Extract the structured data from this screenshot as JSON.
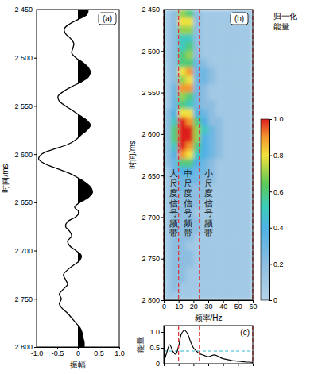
{
  "chart_data": [
    {
      "type": "line",
      "label": "(a)",
      "xlabel": "振幅",
      "ylabel": "时间/ms",
      "xlim": [
        -1,
        1
      ],
      "ylim": [
        2800,
        2450
      ],
      "xticks": [
        {
          "value": -1,
          "label": "-1.0"
        },
        -0.5,
        0,
        0.5,
        {
          "value": 1,
          "label": "1.0"
        }
      ],
      "yticks": [
        {
          "value": 2450,
          "label": "2 450"
        },
        {
          "value": 2500,
          "label": "2 500"
        },
        {
          "value": 2550,
          "label": "2 550"
        },
        {
          "value": 2600,
          "label": "2 600"
        },
        {
          "value": 2650,
          "label": "2 650"
        },
        {
          "value": 2700,
          "label": "2 700"
        },
        {
          "value": 2750,
          "label": "2 750"
        },
        {
          "value": 2800,
          "label": "2 800"
        }
      ],
      "color": "#000000",
      "x": [
        0.25,
        0.22,
        0.02,
        -0.2,
        -0.33,
        -0.3,
        -0.18,
        -0.1,
        -0.12,
        -0.15,
        -0.05,
        0.12,
        0.25,
        0.3,
        0.25,
        0.08,
        -0.15,
        -0.35,
        -0.48,
        -0.45,
        -0.3,
        -0.12,
        0.05,
        0.22,
        0.3,
        0.22,
        0.08,
        -0.05,
        -0.25,
        -0.6,
        -0.88,
        -0.95,
        -0.8,
        -0.5,
        -0.2,
        0.02,
        0.2,
        0.32,
        0.35,
        0.25,
        0.05,
        -0.08,
        0.03,
        -0.05,
        -0.25,
        -0.3,
        -0.2,
        -0.15,
        -0.25,
        -0.2,
        -0.05,
        0.08,
        0.05,
        -0.1,
        -0.25,
        -0.35,
        -0.3,
        -0.25,
        -0.35,
        -0.45,
        -0.4,
        -0.45,
        -0.38,
        -0.25,
        -0.15,
        -0.05,
        0.05,
        0.1,
        0.12,
        0.15,
        0.15
      ],
      "y": [
        2450,
        2455,
        2460,
        2465,
        2470,
        2475,
        2480,
        2485,
        2490,
        2495,
        2500,
        2505,
        2510,
        2515,
        2520,
        2525,
        2530,
        2535,
        2540,
        2545,
        2550,
        2555,
        2560,
        2565,
        2570,
        2575,
        2580,
        2585,
        2590,
        2595,
        2600,
        2605,
        2610,
        2615,
        2620,
        2625,
        2630,
        2635,
        2640,
        2645,
        2650,
        2655,
        2660,
        2665,
        2670,
        2675,
        2680,
        2685,
        2690,
        2695,
        2700,
        2705,
        2710,
        2715,
        2720,
        2725,
        2730,
        2735,
        2740,
        2745,
        2750,
        2755,
        2760,
        2765,
        2770,
        2775,
        2780,
        2785,
        2790,
        2795,
        2800
      ]
    },
    {
      "type": "heatmap",
      "label": "(b)",
      "xlabel": "频率/Hz",
      "ylabel": "时间/ms",
      "xlim": [
        0,
        60
      ],
      "ylim": [
        2800,
        2450
      ],
      "xticks": [
        0,
        10,
        20,
        30,
        40,
        50,
        60
      ],
      "yticks": [
        {
          "value": 2450,
          "label": "2 450"
        },
        {
          "value": 2500,
          "label": "2 500"
        },
        {
          "value": 2550,
          "label": "2 550"
        },
        {
          "value": 2600,
          "label": "2 600"
        },
        {
          "value": 2650,
          "label": "2 650"
        },
        {
          "value": 2700,
          "label": "2 700"
        },
        {
          "value": 2750,
          "label": "2 750"
        },
        {
          "value": 2800,
          "label": "2 800"
        }
      ],
      "x_bins": [
        0,
        5,
        10,
        15,
        20,
        25,
        30,
        35,
        40,
        45,
        50,
        55,
        60
      ],
      "y_bins": [
        2450,
        2460,
        2470,
        2480,
        2490,
        2500,
        2510,
        2520,
        2530,
        2540,
        2550,
        2560,
        2570,
        2580,
        2590,
        2600,
        2610,
        2620,
        2630,
        2640,
        2650,
        2660,
        2670,
        2680,
        2690,
        2700,
        2710,
        2720,
        2730,
        2740,
        2750,
        2760,
        2770,
        2780,
        2790,
        2800
      ],
      "z": [
        [
          0.1,
          0.2,
          0.7,
          0.6,
          0.2,
          0.1,
          0.1,
          0.1,
          0.1,
          0.1,
          0.1,
          0.1
        ],
        [
          0.1,
          0.2,
          0.8,
          0.8,
          0.2,
          0.1,
          0.1,
          0.1,
          0.1,
          0.1,
          0.1,
          0.1
        ],
        [
          0.1,
          0.2,
          0.7,
          0.7,
          0.2,
          0.1,
          0.1,
          0.1,
          0.1,
          0.1,
          0.1,
          0.1
        ],
        [
          0.1,
          0.2,
          0.5,
          0.5,
          0.2,
          0.1,
          0.1,
          0.1,
          0.1,
          0.1,
          0.1,
          0.1
        ],
        [
          0.1,
          0.2,
          0.5,
          0.6,
          0.2,
          0.1,
          0.1,
          0.1,
          0.1,
          0.1,
          0.1,
          0.1
        ],
        [
          0.1,
          0.2,
          0.6,
          0.7,
          0.2,
          0.1,
          0.1,
          0.1,
          0.1,
          0.1,
          0.1,
          0.1
        ],
        [
          0.1,
          0.2,
          0.6,
          0.6,
          0.3,
          0.2,
          0.1,
          0.1,
          0.1,
          0.1,
          0.1,
          0.1
        ],
        [
          0.1,
          0.2,
          0.8,
          0.9,
          0.3,
          0.3,
          0.2,
          0.1,
          0.1,
          0.1,
          0.1,
          0.1
        ],
        [
          0.1,
          0.2,
          0.7,
          0.8,
          0.3,
          0.3,
          0.2,
          0.1,
          0.1,
          0.1,
          0.1,
          0.1
        ],
        [
          0.1,
          0.3,
          0.9,
          0.9,
          0.3,
          0.2,
          0.1,
          0.1,
          0.1,
          0.1,
          0.1,
          0.1
        ],
        [
          0.1,
          0.3,
          0.7,
          0.6,
          0.3,
          0.2,
          0.1,
          0.1,
          0.1,
          0.1,
          0.1,
          0.1
        ],
        [
          0.1,
          0.3,
          0.6,
          0.5,
          0.3,
          0.2,
          0.2,
          0.1,
          0.1,
          0.1,
          0.1,
          0.1
        ],
        [
          0.2,
          0.4,
          0.8,
          0.8,
          0.4,
          0.3,
          0.2,
          0.1,
          0.1,
          0.1,
          0.1,
          0.1
        ],
        [
          0.2,
          0.5,
          1.0,
          0.9,
          0.6,
          0.4,
          0.2,
          0.2,
          0.1,
          0.1,
          0.1,
          0.1
        ],
        [
          0.2,
          0.6,
          1.0,
          1.0,
          0.7,
          0.5,
          0.3,
          0.2,
          0.1,
          0.1,
          0.1,
          0.1
        ],
        [
          0.2,
          0.6,
          1.0,
          1.0,
          0.7,
          0.4,
          0.3,
          0.2,
          0.1,
          0.1,
          0.1,
          0.1
        ],
        [
          0.2,
          0.5,
          1.0,
          0.9,
          0.6,
          0.4,
          0.3,
          0.2,
          0.1,
          0.1,
          0.1,
          0.1
        ],
        [
          0.2,
          0.4,
          0.9,
          0.8,
          0.5,
          0.4,
          0.3,
          0.2,
          0.1,
          0.1,
          0.1,
          0.1
        ],
        [
          0.2,
          0.3,
          0.6,
          0.6,
          0.4,
          0.3,
          0.2,
          0.1,
          0.1,
          0.1,
          0.1,
          0.1
        ],
        [
          0.1,
          0.3,
          0.4,
          0.4,
          0.3,
          0.3,
          0.2,
          0.1,
          0.1,
          0.1,
          0.1,
          0.1
        ],
        [
          0.1,
          0.2,
          0.3,
          0.3,
          0.3,
          0.2,
          0.2,
          0.1,
          0.1,
          0.1,
          0.1,
          0.1
        ],
        [
          0.1,
          0.2,
          0.3,
          0.2,
          0.2,
          0.2,
          0.1,
          0.1,
          0.1,
          0.1,
          0.1,
          0.1
        ],
        [
          0.1,
          0.2,
          0.2,
          0.2,
          0.2,
          0.2,
          0.1,
          0.1,
          0.1,
          0.1,
          0.1,
          0.1
        ],
        [
          0.1,
          0.2,
          0.2,
          0.2,
          0.2,
          0.1,
          0.1,
          0.1,
          0.1,
          0.1,
          0.1,
          0.1
        ],
        [
          0.1,
          0.2,
          0.2,
          0.2,
          0.1,
          0.1,
          0.1,
          0.1,
          0.1,
          0.1,
          0.1,
          0.1
        ],
        [
          0.1,
          0.2,
          0.2,
          0.2,
          0.2,
          0.1,
          0.1,
          0.1,
          0.1,
          0.1,
          0.1,
          0.1
        ],
        [
          0.1,
          0.2,
          0.2,
          0.2,
          0.2,
          0.1,
          0.1,
          0.1,
          0.1,
          0.1,
          0.1,
          0.1
        ],
        [
          0.1,
          0.2,
          0.2,
          0.2,
          0.1,
          0.1,
          0.1,
          0.1,
          0.1,
          0.1,
          0.1,
          0.1
        ],
        [
          0.1,
          0.2,
          0.2,
          0.1,
          0.1,
          0.1,
          0.1,
          0.1,
          0.1,
          0.1,
          0.1,
          0.1
        ],
        [
          0.1,
          0.2,
          0.2,
          0.2,
          0.1,
          0.1,
          0.1,
          0.1,
          0.1,
          0.1,
          0.1,
          0.1
        ],
        [
          0.1,
          0.2,
          0.2,
          0.2,
          0.1,
          0.1,
          0.1,
          0.1,
          0.1,
          0.1,
          0.1,
          0.1
        ],
        [
          0.1,
          0.2,
          0.2,
          0.1,
          0.1,
          0.1,
          0.1,
          0.1,
          0.1,
          0.1,
          0.1,
          0.1
        ],
        [
          0.1,
          0.2,
          0.2,
          0.1,
          0.1,
          0.1,
          0.1,
          0.1,
          0.1,
          0.1,
          0.1,
          0.1
        ],
        [
          0.1,
          0.2,
          0.1,
          0.1,
          0.1,
          0.1,
          0.1,
          0.1,
          0.1,
          0.1,
          0.1,
          0.1
        ],
        [
          0.1,
          0.1,
          0.1,
          0.1,
          0.1,
          0.1,
          0.1,
          0.1,
          0.1,
          0.1,
          0.1,
          0.1
        ]
      ],
      "colorbar": {
        "label": "归一化能量",
        "range": [
          0,
          1
        ],
        "ticks": [
          0,
          0.2,
          0.4,
          0.6,
          0.8,
          {
            "value": 1,
            "label": "1.0"
          }
        ]
      },
      "band_edges": [
        0,
        10,
        24,
        60
      ],
      "annotations": [
        "大尺度信号频带",
        "中尺度信号频带",
        "小尺度信号频带"
      ]
    },
    {
      "type": "line",
      "label": "(c)",
      "ylabel": "能量",
      "xlim": [
        0,
        60
      ],
      "ylim": [
        0,
        1.2
      ],
      "xticks": [
        0,
        10,
        20,
        30,
        40,
        50,
        60
      ],
      "yticks": [
        0,
        0.5,
        {
          "value": 1,
          "label": "1.0"
        }
      ],
      "tick_labels": "y",
      "color": "#000000",
      "x": [
        0,
        2,
        4,
        6,
        8,
        10,
        12,
        14,
        16,
        18,
        20,
        22,
        24,
        26,
        28,
        30,
        32,
        34,
        36,
        38,
        40,
        42,
        44,
        46,
        48,
        50,
        52,
        54,
        56,
        58,
        60
      ],
      "values": [
        0.05,
        0.35,
        0.6,
        0.4,
        0.3,
        0.55,
        0.95,
        1.05,
        0.95,
        0.7,
        0.5,
        0.4,
        0.32,
        0.28,
        0.25,
        0.22,
        0.25,
        0.28,
        0.25,
        0.2,
        0.16,
        0.14,
        0.12,
        0.1,
        0.09,
        0.08,
        0.07,
        0.06,
        0.05,
        0.05,
        0.04
      ],
      "band_edges": [
        10,
        24,
        60
      ],
      "hline": 0.4
    }
  ]
}
